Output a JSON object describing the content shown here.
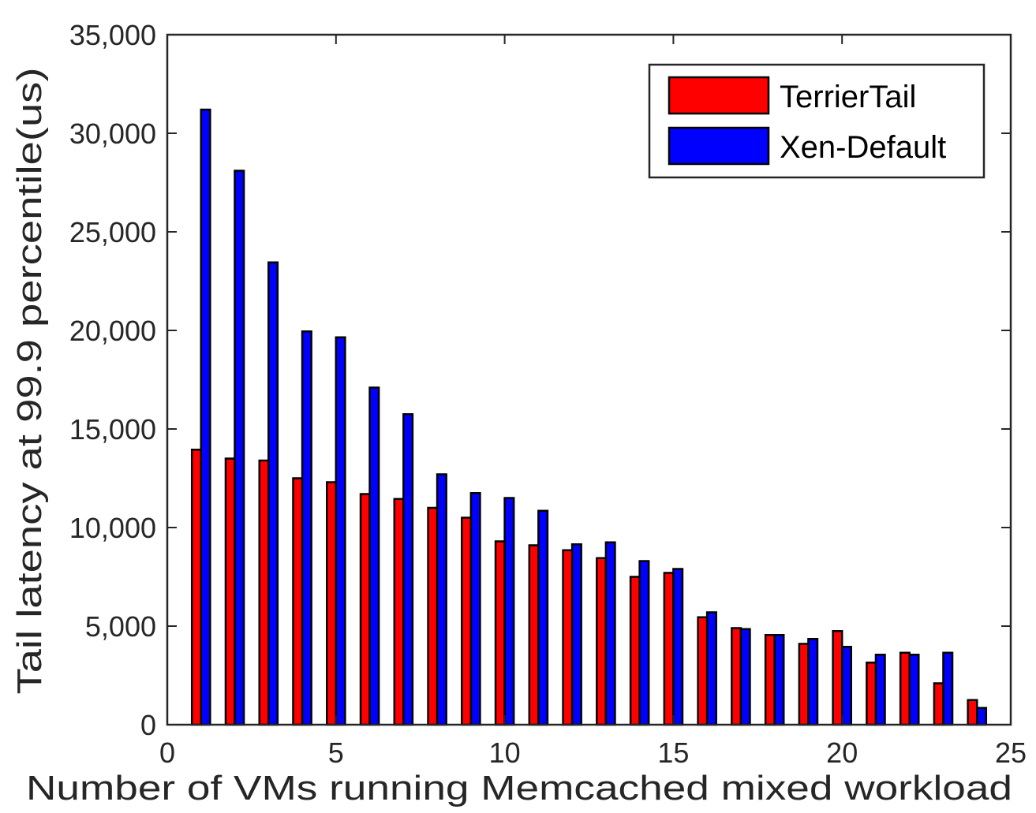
{
  "chart_data": {
    "type": "bar",
    "xlabel": "Number of VMs running Memcached mixed workload",
    "ylabel": "Tail latency at 99.9 percentile(us)",
    "xlim": [
      0,
      25
    ],
    "ylim": [
      0,
      35000
    ],
    "xticks": [
      "0",
      "5",
      "10",
      "15",
      "20",
      "25"
    ],
    "yticks": [
      "0",
      "5,000",
      "10,000",
      "15,000",
      "20,000",
      "25,000",
      "30,000",
      "35,000"
    ],
    "legend_position": "top-right",
    "grid": false,
    "x": [
      1,
      2,
      3,
      4,
      5,
      6,
      7,
      8,
      9,
      10,
      11,
      12,
      13,
      14,
      15,
      16,
      17,
      18,
      19,
      20,
      21,
      22,
      23,
      24
    ],
    "series": [
      {
        "name": "TerrierTail",
        "color": "#ff0000",
        "values": [
          13950,
          13500,
          13400,
          12500,
          12300,
          11700,
          11450,
          11000,
          10500,
          9300,
          9100,
          8850,
          8450,
          7500,
          7700,
          5450,
          4900,
          4550,
          4100,
          4750,
          3150,
          3650,
          2100,
          1250
        ]
      },
      {
        "name": "Xen-Default",
        "color": "#0000ff",
        "values": [
          31200,
          28100,
          23450,
          19950,
          19650,
          17100,
          15750,
          12700,
          11750,
          11500,
          10850,
          9150,
          9250,
          8300,
          7900,
          5700,
          4850,
          4550,
          4350,
          3950,
          3550,
          3550,
          3650,
          850
        ]
      }
    ]
  }
}
